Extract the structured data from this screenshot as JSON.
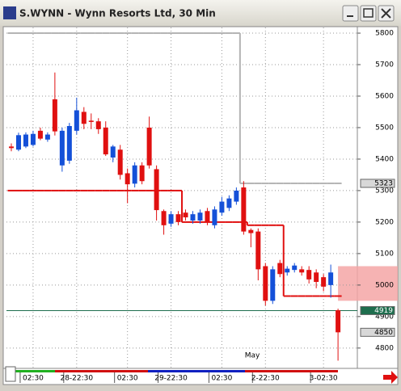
{
  "chart_data": {
    "type": "candlestick",
    "title": "S.WYNN - Wynn Resorts Ltd, 30 Min",
    "categories": [
      null,
      null,
      null,
      "02:30",
      null,
      null,
      null,
      null,
      null,
      "28-22:30",
      null,
      null,
      null,
      null,
      null,
      null,
      "02:30",
      null,
      null,
      null,
      null,
      null,
      "29-22:30",
      null,
      null,
      null,
      null,
      null,
      null,
      "02:30",
      null,
      null,
      null,
      null,
      null,
      "2-22:30",
      null,
      null,
      null,
      null,
      null,
      null,
      null,
      "3-02:30",
      null,
      null
    ],
    "open": [
      5440,
      5430,
      5440,
      5445,
      5490,
      5462,
      5590,
      5380,
      5395,
      5490,
      5550,
      5522,
      5520,
      5500,
      5405,
      5430,
      5355,
      5322,
      5380,
      5500,
      5368,
      5235,
      5195,
      5225,
      5230,
      5205,
      5205,
      5235,
      5190,
      5230,
      5245,
      5265,
      5310,
      5175,
      5170,
      5060,
      4950,
      5070,
      5040,
      5048,
      5050,
      5048,
      5040,
      5025,
      5000,
      4920
    ],
    "high": [
      5450,
      5484,
      5485,
      5490,
      5500,
      5485,
      5675,
      5500,
      5515,
      5595,
      5565,
      5545,
      5530,
      5520,
      5445,
      5445,
      5370,
      5390,
      5390,
      5535,
      5380,
      5240,
      5235,
      5235,
      5240,
      5235,
      5240,
      5245,
      5250,
      5280,
      5285,
      5310,
      5330,
      5180,
      5180,
      5070,
      5060,
      5080,
      5060,
      5070,
      5060,
      5060,
      5050,
      5035,
      5065,
      4925
    ],
    "low": [
      5425,
      5425,
      5435,
      5440,
      5460,
      5455,
      5475,
      5360,
      5385,
      5478,
      5495,
      5495,
      5480,
      5410,
      5390,
      5335,
      5260,
      5310,
      5320,
      5370,
      5205,
      5160,
      5185,
      5190,
      5205,
      5195,
      5195,
      5190,
      5180,
      5220,
      5235,
      5255,
      5160,
      5120,
      5015,
      4935,
      4940,
      5025,
      5030,
      5040,
      5030,
      5005,
      4990,
      4980,
      4960,
      4760
    ],
    "close": [
      5435,
      5476,
      5478,
      5480,
      5465,
      5478,
      5488,
      5490,
      5505,
      5555,
      5512,
      5518,
      5495,
      5415,
      5440,
      5350,
      5320,
      5380,
      5330,
      5380,
      5238,
      5190,
      5225,
      5200,
      5215,
      5225,
      5230,
      5200,
      5240,
      5265,
      5275,
      5300,
      5170,
      5165,
      5050,
      4950,
      5050,
      5035,
      5052,
      5062,
      5040,
      5018,
      5010,
      4995,
      5040,
      4850
    ],
    "up_color": "#1450d8",
    "down_color": "#e01010",
    "ylim": [
      4738,
      5818
    ],
    "yticks": [
      4800,
      4900,
      5000,
      5100,
      5200,
      5300,
      5400,
      5500,
      5600,
      5700,
      5800
    ],
    "grid": true,
    "lines": [
      {
        "color": "#b4b4b4",
        "values": [
          5800,
          5800,
          5800,
          5800,
          5800,
          5800,
          5800,
          5800,
          5800,
          5800,
          5800,
          5800,
          5800,
          5800,
          5800,
          5800,
          5800,
          5800,
          5800,
          5800,
          5800,
          5800,
          5800,
          5800,
          5800,
          5800,
          5800,
          5800,
          5800,
          5800,
          5800,
          5800,
          5323,
          5323,
          5323,
          5323,
          5323,
          5323,
          5323,
          5323,
          5323,
          5323,
          5323,
          5323,
          5323,
          5323
        ]
      },
      {
        "color": "#e01010",
        "values": [
          5300,
          5300,
          5300,
          5300,
          5300,
          5300,
          5300,
          5300,
          5300,
          5300,
          5300,
          5300,
          5300,
          5300,
          5300,
          5300,
          5300,
          5300,
          5300,
          5300,
          5300,
          5300,
          5300,
          5300,
          5200,
          5200,
          5200,
          5200,
          5200,
          5200,
          5200,
          5200,
          5200,
          5190,
          5190,
          5190,
          5190,
          5190,
          4965,
          4965,
          4965,
          4965,
          4965,
          4965,
          4965,
          4965
        ]
      }
    ],
    "price_markers": [
      {
        "value": 5323,
        "color": "#d8d8d8",
        "text_color": "#000000"
      },
      {
        "value": 4919,
        "color": "#1e6e4e",
        "text_color": "#ffffff",
        "line": true
      },
      {
        "value": 4850,
        "color": "#d8d8d8",
        "text_color": "#000000"
      }
    ],
    "highlight": {
      "range": [
        4950,
        5060
      ],
      "color": "#f4a6a6"
    },
    "annotation": "May"
  }
}
